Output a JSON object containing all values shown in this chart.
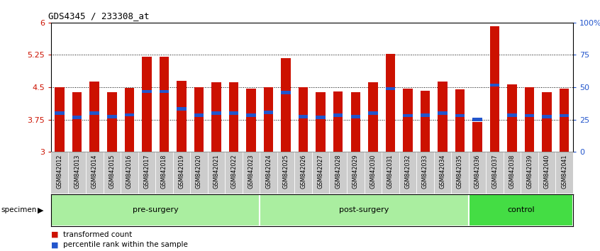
{
  "title": "GDS4345 / 233308_at",
  "samples": [
    "GSM842012",
    "GSM842013",
    "GSM842014",
    "GSM842015",
    "GSM842016",
    "GSM842017",
    "GSM842018",
    "GSM842019",
    "GSM842020",
    "GSM842021",
    "GSM842022",
    "GSM842023",
    "GSM842024",
    "GSM842025",
    "GSM842026",
    "GSM842027",
    "GSM842028",
    "GSM842029",
    "GSM842030",
    "GSM842031",
    "GSM842032",
    "GSM842033",
    "GSM842034",
    "GSM842035",
    "GSM842036",
    "GSM842037",
    "GSM842038",
    "GSM842039",
    "GSM842040",
    "GSM842041"
  ],
  "bar_heights": [
    4.5,
    4.38,
    4.63,
    4.38,
    4.48,
    5.2,
    5.2,
    4.65,
    4.5,
    4.62,
    4.62,
    4.47,
    4.5,
    5.18,
    4.5,
    4.38,
    4.4,
    4.38,
    4.62,
    5.27,
    4.47,
    4.42,
    4.63,
    4.45,
    3.7,
    5.92,
    4.57,
    4.5,
    4.38,
    4.47
  ],
  "blue_heights": [
    3.9,
    3.8,
    3.9,
    3.82,
    3.86,
    4.4,
    4.4,
    4.0,
    3.85,
    3.9,
    3.9,
    3.85,
    3.92,
    4.38,
    3.82,
    3.8,
    3.85,
    3.82,
    3.9,
    4.47,
    3.84,
    3.85,
    3.9,
    3.84,
    3.75,
    4.55,
    3.85,
    3.84,
    3.82,
    3.84
  ],
  "ymin": 3.0,
  "ymax": 6.0,
  "yticks": [
    3.0,
    3.75,
    4.5,
    5.25,
    6.0
  ],
  "ytick_labels": [
    "3",
    "3.75",
    "4.5",
    "5.25",
    "6"
  ],
  "bar_color": "#CC1100",
  "blue_color": "#2255CC",
  "label_color_left": "#CC1100",
  "label_color_right": "#2255CC",
  "bar_width": 0.55,
  "groups": [
    {
      "label": "pre-surgery",
      "start": 0,
      "end": 12,
      "color": "#AAEEA0"
    },
    {
      "label": "post-surgery",
      "start": 12,
      "end": 24,
      "color": "#AAEEA0"
    },
    {
      "label": "control",
      "start": 24,
      "end": 30,
      "color": "#44DD44"
    }
  ],
  "xticklabel_bg": "#CCCCCC",
  "group_divider_color": "#FFFFFF"
}
